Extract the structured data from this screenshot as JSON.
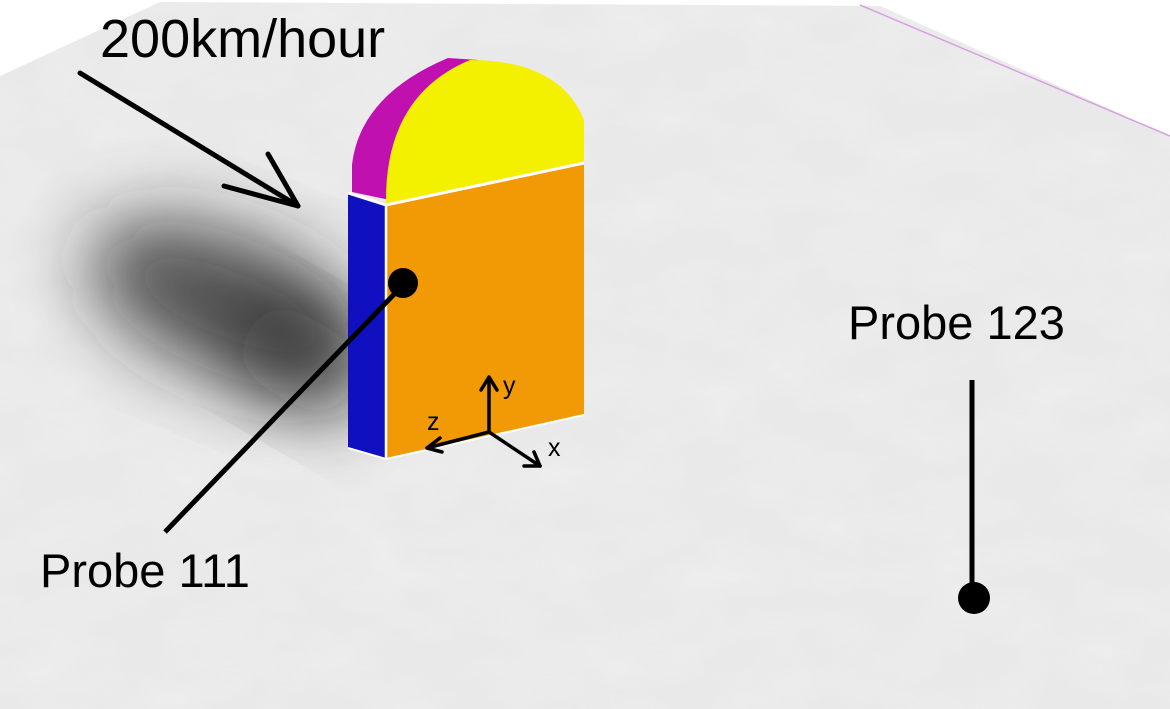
{
  "annotations": {
    "speed": "200km/hour",
    "probe_left": "Probe 111",
    "probe_right": "Probe 123"
  },
  "axes": {
    "x_label": "x",
    "y_label": "y",
    "z_label": "z"
  },
  "colors": {
    "ground": "#e9e9e9",
    "ground_texture": "#ffffff",
    "body_front": "#f29a06",
    "body_side": "#1010c0",
    "cap_front": "#f3f000",
    "cap_side": "#c010b0",
    "ink": "#000000"
  }
}
